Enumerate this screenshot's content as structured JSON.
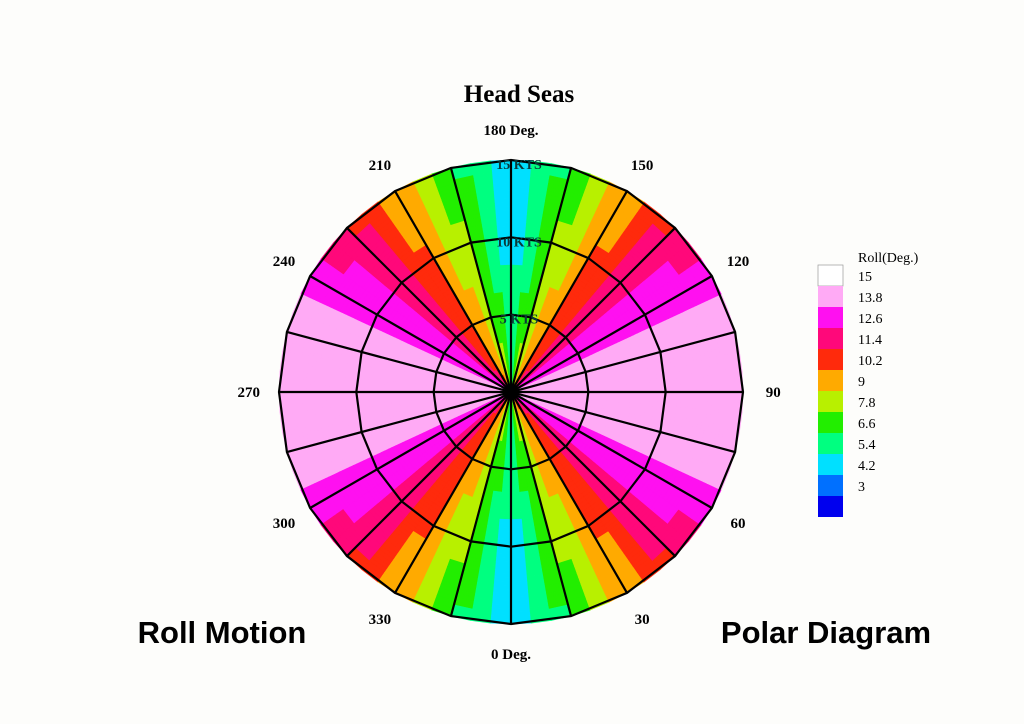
{
  "chart_data": {
    "type": "polar-contour",
    "title": "Head Seas",
    "footer_left": "Roll Motion",
    "footer_right": "Polar Diagram",
    "heading_labels": [
      {
        "deg": 0,
        "text": "0 Deg."
      },
      {
        "deg": 30,
        "text": "30"
      },
      {
        "deg": 60,
        "text": "60"
      },
      {
        "deg": 90,
        "text": "90"
      },
      {
        "deg": 120,
        "text": "120"
      },
      {
        "deg": 150,
        "text": "150"
      },
      {
        "deg": 180,
        "text": "180 Deg."
      },
      {
        "deg": 210,
        "text": "210"
      },
      {
        "deg": 240,
        "text": "240"
      },
      {
        "deg": 270,
        "text": "270"
      },
      {
        "deg": 300,
        "text": "300"
      },
      {
        "deg": 330,
        "text": "330"
      }
    ],
    "speed_rings": [
      {
        "speed": 5,
        "label": "5 KTS"
      },
      {
        "speed": 10,
        "label": "10 KTS"
      },
      {
        "speed": 15,
        "label": "15 KTS"
      }
    ],
    "speed_max": 15,
    "heading_step": 15,
    "legend": {
      "title": "Roll(Deg.)",
      "levels": [
        15,
        13.8,
        12.6,
        11.4,
        10.2,
        9,
        7.8,
        6.6,
        5.4,
        4.2,
        3
      ],
      "colors": [
        "#ffffff",
        "#ffaaf5",
        "#ff10f0",
        "#ff087a",
        "#ff2a0c",
        "#ffaa00",
        "#b8f000",
        "#22ee00",
        "#00ff80",
        "#00e0ff",
        "#0070ff",
        "#0000ee"
      ]
    },
    "grid": true
  }
}
